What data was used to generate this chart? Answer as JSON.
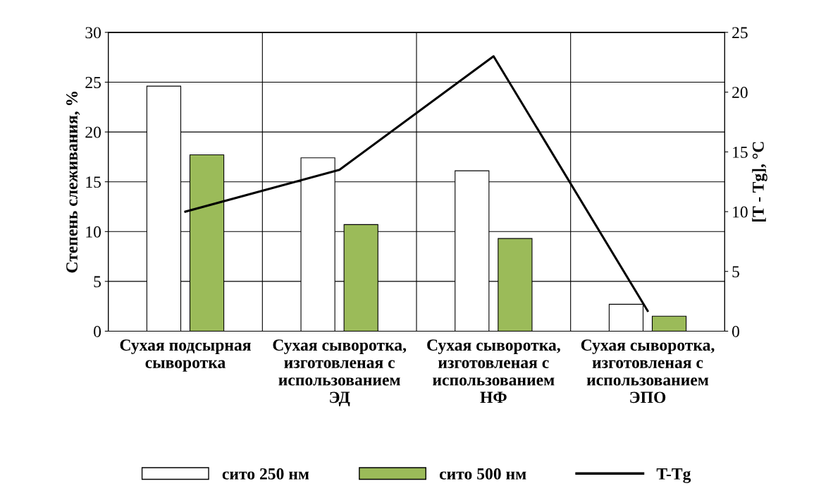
{
  "chart_data": {
    "type": "bar",
    "categories": [
      "Сухая подсырная\nсыворотка",
      "Сухая сыворотка,\nизготовленая с\nиспользованием\nЭД",
      "Сухая сыворотка,\nизготовленая с\nиспользованием\nНФ",
      "Сухая сыворотка,\nизготовленая с\nиспользованием\nЭПО"
    ],
    "series": [
      {
        "name": "сито 250 нм",
        "color": "#ffffff",
        "values": [
          24.6,
          17.4,
          16.1,
          2.7
        ]
      },
      {
        "name": "сито 500 нм",
        "color": "#9bbb59",
        "values": [
          17.7,
          10.7,
          9.3,
          1.5
        ]
      },
      {
        "name": "T-Tg",
        "color": "#000000",
        "type": "line",
        "axis": "y2",
        "values": [
          10.0,
          13.5,
          23.0,
          1.7
        ]
      }
    ],
    "ylabel": "Степень слеживания, %",
    "y2label": "[T - Tg], °C",
    "ylim": [
      0,
      30
    ],
    "yticks": [
      0,
      5,
      10,
      15,
      20,
      25,
      30
    ],
    "y2lim": [
      0,
      25
    ],
    "y2ticks": [
      0,
      5,
      10,
      15,
      20,
      25
    ],
    "grid": true,
    "legend": "bottom",
    "marker": "none",
    "line_style": "solid"
  }
}
